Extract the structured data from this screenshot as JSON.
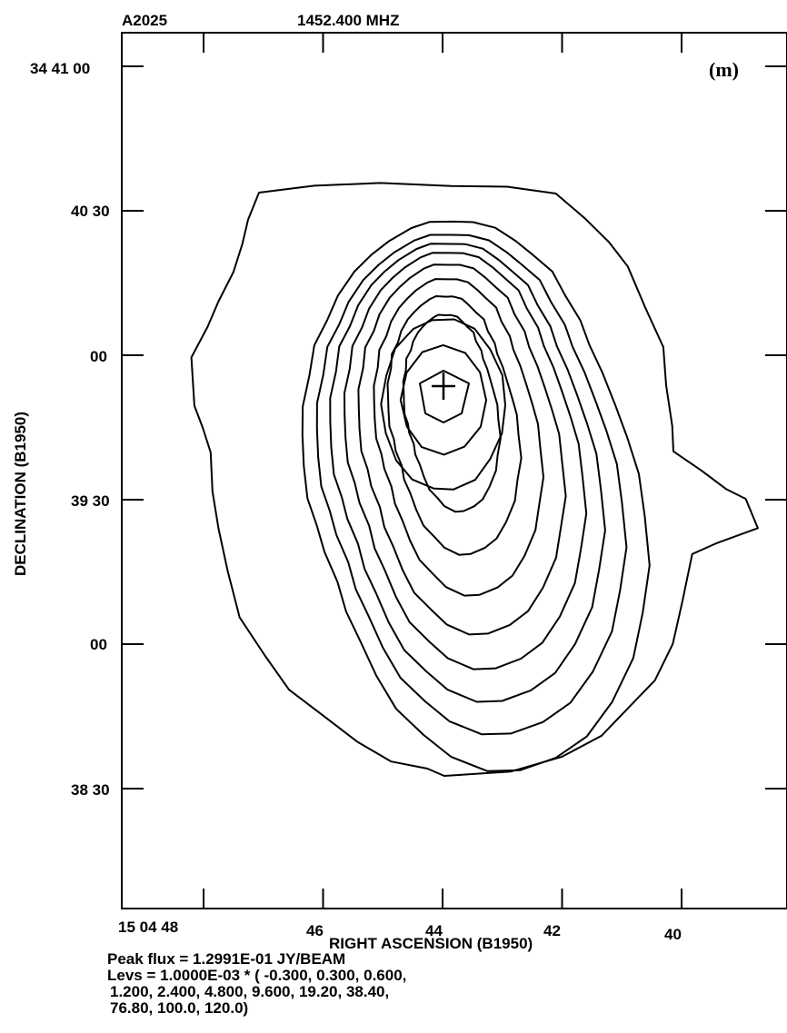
{
  "header": {
    "source": "A2025",
    "frequency": "1452.400 MHZ"
  },
  "panel_label": "(m)",
  "chart_data": {
    "type": "contour",
    "title": "A2025",
    "subtitle": "1452.400 MHZ",
    "xlabel": "RIGHT ASCENSION (B1950)",
    "ylabel": "DECLINATION (B1950)",
    "x_ticks": [
      {
        "label": "15 04 48",
        "value_sec": 48
      },
      {
        "label": "46",
        "value_sec": 46
      },
      {
        "label": "44",
        "value_sec": 44
      },
      {
        "label": "42",
        "value_sec": 42
      },
      {
        "label": "40",
        "value_sec": 40
      }
    ],
    "y_ticks": [
      {
        "label": "34 41 00",
        "value_arcsec": 0
      },
      {
        "label": "40 30",
        "value_arcsec": -30
      },
      {
        "label": "00",
        "value_arcsec": -60
      },
      {
        "label": "39 30",
        "value_arcsec": -90
      },
      {
        "label": "00",
        "value_arcsec": -120
      },
      {
        "label": "38 30",
        "value_arcsec": -150
      }
    ],
    "peak_marker": {
      "ra": "15 04 43.9",
      "dec": "34 39 53"
    },
    "peak_flux": "1.2991E-01",
    "peak_flux_unit": "JY/BEAM",
    "contour_base": "1.0000E-03",
    "contour_levels": [
      -0.3,
      0.3,
      0.6,
      1.2,
      2.4,
      4.8,
      9.6,
      19.2,
      38.4,
      76.8,
      100.0,
      120.0
    ]
  },
  "footer": {
    "line1": "Peak flux =   1.2991E-01  JY/BEAM",
    "line2": "Levs =   1.0000E-03 * ( -0.300, 0.300, 0.600,",
    "line3": "1.200, 2.400, 4.800, 9.600, 19.20, 38.40,",
    "line4": "76.80, 100.0, 120.0)"
  }
}
